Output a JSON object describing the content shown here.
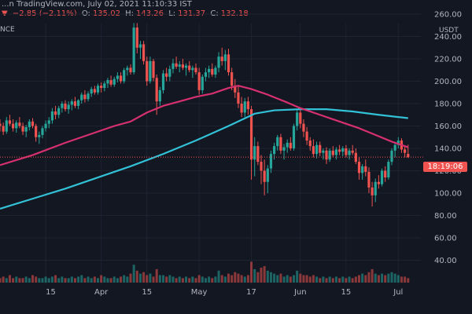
{
  "header": {
    "source": "...n TradingView.com, July 02, 2021 11:10:33 IST",
    "change_arrow": "▼",
    "change": "−2.85 (−2.11%)",
    "o_label": "O:",
    "o_value": "135.02",
    "h_label": "H:",
    "h_value": "143.26",
    "l_label": "L:",
    "l_value": "131.37",
    "c_label": "C:",
    "c_value": "132.18"
  },
  "symbol_fragment": "NCE",
  "price_tag": "18:19:06",
  "colors": {
    "background": "#131722",
    "up": "#26a69a",
    "down": "#ef5350",
    "ma_fast": "#d6306f",
    "ma_slow": "#32c1d6",
    "grid": "#1e2330"
  },
  "chart_data": {
    "type": "candlestick",
    "y_unit": "USDT",
    "y_ticks": [
      40,
      60,
      80,
      100,
      120,
      140,
      160,
      180,
      200,
      220,
      240,
      260
    ],
    "ylim": [
      20,
      260
    ],
    "x_ticks": [
      "15",
      "Apr",
      "15",
      "May",
      "17",
      "Jun",
      "15",
      "Jul"
    ],
    "x_tick_days": [
      14,
      31,
      45,
      61,
      77,
      92,
      106,
      122
    ],
    "last_price": 132.18,
    "candles": [
      {
        "d": 0,
        "o": 162,
        "h": 166,
        "l": 155,
        "c": 160
      },
      {
        "d": 1,
        "o": 160,
        "h": 163,
        "l": 152,
        "c": 155
      },
      {
        "d": 2,
        "o": 155,
        "h": 168,
        "l": 153,
        "c": 165
      },
      {
        "d": 3,
        "o": 165,
        "h": 170,
        "l": 160,
        "c": 162
      },
      {
        "d": 4,
        "o": 162,
        "h": 166,
        "l": 155,
        "c": 158
      },
      {
        "d": 5,
        "o": 158,
        "h": 165,
        "l": 154,
        "c": 163
      },
      {
        "d": 6,
        "o": 163,
        "h": 168,
        "l": 158,
        "c": 160
      },
      {
        "d": 7,
        "o": 160,
        "h": 163,
        "l": 152,
        "c": 155
      },
      {
        "d": 8,
        "o": 155,
        "h": 161,
        "l": 150,
        "c": 159
      },
      {
        "d": 9,
        "o": 159,
        "h": 166,
        "l": 156,
        "c": 164
      },
      {
        "d": 10,
        "o": 164,
        "h": 167,
        "l": 158,
        "c": 160
      },
      {
        "d": 11,
        "o": 160,
        "h": 162,
        "l": 146,
        "c": 150
      },
      {
        "d": 12,
        "o": 150,
        "h": 155,
        "l": 144,
        "c": 152
      },
      {
        "d": 13,
        "o": 152,
        "h": 160,
        "l": 149,
        "c": 158
      },
      {
        "d": 14,
        "o": 158,
        "h": 165,
        "l": 155,
        "c": 162
      },
      {
        "d": 15,
        "o": 162,
        "h": 168,
        "l": 158,
        "c": 165
      },
      {
        "d": 16,
        "o": 165,
        "h": 176,
        "l": 162,
        "c": 173
      },
      {
        "d": 17,
        "o": 173,
        "h": 178,
        "l": 166,
        "c": 170
      },
      {
        "d": 18,
        "o": 170,
        "h": 178,
        "l": 167,
        "c": 176
      },
      {
        "d": 19,
        "o": 176,
        "h": 182,
        "l": 172,
        "c": 180
      },
      {
        "d": 20,
        "o": 180,
        "h": 183,
        "l": 173,
        "c": 175
      },
      {
        "d": 21,
        "o": 175,
        "h": 182,
        "l": 171,
        "c": 179
      },
      {
        "d": 22,
        "o": 179,
        "h": 184,
        "l": 174,
        "c": 182
      },
      {
        "d": 23,
        "o": 182,
        "h": 186,
        "l": 176,
        "c": 178
      },
      {
        "d": 24,
        "o": 178,
        "h": 184,
        "l": 175,
        "c": 183
      },
      {
        "d": 25,
        "o": 183,
        "h": 190,
        "l": 180,
        "c": 188
      },
      {
        "d": 26,
        "o": 188,
        "h": 192,
        "l": 181,
        "c": 184
      },
      {
        "d": 27,
        "o": 184,
        "h": 191,
        "l": 182,
        "c": 189
      },
      {
        "d": 28,
        "o": 189,
        "h": 195,
        "l": 186,
        "c": 193
      },
      {
        "d": 29,
        "o": 193,
        "h": 196,
        "l": 188,
        "c": 190
      },
      {
        "d": 30,
        "o": 190,
        "h": 198,
        "l": 188,
        "c": 196
      },
      {
        "d": 31,
        "o": 196,
        "h": 199,
        "l": 190,
        "c": 194
      },
      {
        "d": 32,
        "o": 194,
        "h": 200,
        "l": 191,
        "c": 198
      },
      {
        "d": 33,
        "o": 198,
        "h": 203,
        "l": 194,
        "c": 201
      },
      {
        "d": 34,
        "o": 201,
        "h": 205,
        "l": 195,
        "c": 197
      },
      {
        "d": 35,
        "o": 197,
        "h": 204,
        "l": 195,
        "c": 202
      },
      {
        "d": 36,
        "o": 202,
        "h": 208,
        "l": 199,
        "c": 205
      },
      {
        "d": 37,
        "o": 205,
        "h": 208,
        "l": 198,
        "c": 200
      },
      {
        "d": 38,
        "o": 200,
        "h": 212,
        "l": 198,
        "c": 210
      },
      {
        "d": 39,
        "o": 210,
        "h": 214,
        "l": 205,
        "c": 212
      },
      {
        "d": 40,
        "o": 212,
        "h": 215,
        "l": 206,
        "c": 208
      },
      {
        "d": 41,
        "o": 208,
        "h": 252,
        "l": 206,
        "c": 248
      },
      {
        "d": 42,
        "o": 248,
        "h": 252,
        "l": 225,
        "c": 230
      },
      {
        "d": 43,
        "o": 230,
        "h": 236,
        "l": 220,
        "c": 233
      },
      {
        "d": 44,
        "o": 233,
        "h": 236,
        "l": 215,
        "c": 218
      },
      {
        "d": 45,
        "o": 218,
        "h": 222,
        "l": 196,
        "c": 200
      },
      {
        "d": 46,
        "o": 200,
        "h": 222,
        "l": 198,
        "c": 218
      },
      {
        "d": 47,
        "o": 218,
        "h": 220,
        "l": 200,
        "c": 203
      },
      {
        "d": 48,
        "o": 203,
        "h": 206,
        "l": 170,
        "c": 182
      },
      {
        "d": 49,
        "o": 182,
        "h": 195,
        "l": 178,
        "c": 192
      },
      {
        "d": 50,
        "o": 192,
        "h": 210,
        "l": 189,
        "c": 207
      },
      {
        "d": 51,
        "o": 207,
        "h": 212,
        "l": 200,
        "c": 204
      },
      {
        "d": 52,
        "o": 204,
        "h": 214,
        "l": 200,
        "c": 211
      },
      {
        "d": 53,
        "o": 211,
        "h": 220,
        "l": 207,
        "c": 216
      },
      {
        "d": 54,
        "o": 216,
        "h": 222,
        "l": 211,
        "c": 213
      },
      {
        "d": 55,
        "o": 213,
        "h": 218,
        "l": 208,
        "c": 215
      },
      {
        "d": 56,
        "o": 215,
        "h": 220,
        "l": 210,
        "c": 212
      },
      {
        "d": 57,
        "o": 212,
        "h": 216,
        "l": 205,
        "c": 214
      },
      {
        "d": 58,
        "o": 214,
        "h": 218,
        "l": 208,
        "c": 210
      },
      {
        "d": 59,
        "o": 210,
        "h": 214,
        "l": 203,
        "c": 212
      },
      {
        "d": 60,
        "o": 212,
        "h": 216,
        "l": 206,
        "c": 208
      },
      {
        "d": 61,
        "o": 208,
        "h": 212,
        "l": 188,
        "c": 192
      },
      {
        "d": 62,
        "o": 192,
        "h": 206,
        "l": 189,
        "c": 204
      },
      {
        "d": 63,
        "o": 204,
        "h": 212,
        "l": 200,
        "c": 208
      },
      {
        "d": 64,
        "o": 208,
        "h": 214,
        "l": 203,
        "c": 211
      },
      {
        "d": 65,
        "o": 211,
        "h": 216,
        "l": 204,
        "c": 206
      },
      {
        "d": 66,
        "o": 206,
        "h": 214,
        "l": 203,
        "c": 212
      },
      {
        "d": 67,
        "o": 212,
        "h": 226,
        "l": 208,
        "c": 222
      },
      {
        "d": 68,
        "o": 222,
        "h": 230,
        "l": 214,
        "c": 218
      },
      {
        "d": 69,
        "o": 218,
        "h": 228,
        "l": 210,
        "c": 224
      },
      {
        "d": 70,
        "o": 224,
        "h": 229,
        "l": 205,
        "c": 208
      },
      {
        "d": 71,
        "o": 208,
        "h": 212,
        "l": 192,
        "c": 196
      },
      {
        "d": 72,
        "o": 196,
        "h": 202,
        "l": 185,
        "c": 190
      },
      {
        "d": 73,
        "o": 190,
        "h": 196,
        "l": 176,
        "c": 180
      },
      {
        "d": 74,
        "o": 180,
        "h": 186,
        "l": 168,
        "c": 172
      },
      {
        "d": 75,
        "o": 172,
        "h": 185,
        "l": 168,
        "c": 182
      },
      {
        "d": 76,
        "o": 182,
        "h": 186,
        "l": 170,
        "c": 175
      },
      {
        "d": 77,
        "o": 175,
        "h": 178,
        "l": 112,
        "c": 130
      },
      {
        "d": 78,
        "o": 130,
        "h": 150,
        "l": 115,
        "c": 142
      },
      {
        "d": 79,
        "o": 142,
        "h": 146,
        "l": 125,
        "c": 128
      },
      {
        "d": 80,
        "o": 128,
        "h": 134,
        "l": 108,
        "c": 120
      },
      {
        "d": 81,
        "o": 120,
        "h": 130,
        "l": 98,
        "c": 110
      },
      {
        "d": 82,
        "o": 110,
        "h": 125,
        "l": 100,
        "c": 122
      },
      {
        "d": 83,
        "o": 122,
        "h": 138,
        "l": 118,
        "c": 135
      },
      {
        "d": 84,
        "o": 135,
        "h": 145,
        "l": 130,
        "c": 142
      },
      {
        "d": 85,
        "o": 142,
        "h": 152,
        "l": 138,
        "c": 150
      },
      {
        "d": 86,
        "o": 150,
        "h": 153,
        "l": 135,
        "c": 138
      },
      {
        "d": 87,
        "o": 138,
        "h": 144,
        "l": 130,
        "c": 141
      },
      {
        "d": 88,
        "o": 141,
        "h": 148,
        "l": 136,
        "c": 145
      },
      {
        "d": 89,
        "o": 145,
        "h": 150,
        "l": 138,
        "c": 140
      },
      {
        "d": 90,
        "o": 140,
        "h": 162,
        "l": 138,
        "c": 160
      },
      {
        "d": 91,
        "o": 160,
        "h": 174,
        "l": 156,
        "c": 172
      },
      {
        "d": 92,
        "o": 172,
        "h": 176,
        "l": 158,
        "c": 162
      },
      {
        "d": 93,
        "o": 162,
        "h": 166,
        "l": 150,
        "c": 155
      },
      {
        "d": 94,
        "o": 155,
        "h": 159,
        "l": 143,
        "c": 147
      },
      {
        "d": 95,
        "o": 147,
        "h": 150,
        "l": 138,
        "c": 142
      },
      {
        "d": 96,
        "o": 142,
        "h": 148,
        "l": 132,
        "c": 135
      },
      {
        "d": 97,
        "o": 135,
        "h": 146,
        "l": 131,
        "c": 143
      },
      {
        "d": 98,
        "o": 143,
        "h": 146,
        "l": 133,
        "c": 136
      },
      {
        "d": 99,
        "o": 136,
        "h": 140,
        "l": 130,
        "c": 138
      },
      {
        "d": 100,
        "o": 138,
        "h": 141,
        "l": 126,
        "c": 130
      },
      {
        "d": 101,
        "o": 130,
        "h": 140,
        "l": 128,
        "c": 138
      },
      {
        "d": 102,
        "o": 138,
        "h": 142,
        "l": 132,
        "c": 134
      },
      {
        "d": 103,
        "o": 134,
        "h": 141,
        "l": 130,
        "c": 139
      },
      {
        "d": 104,
        "o": 139,
        "h": 143,
        "l": 134,
        "c": 137
      },
      {
        "d": 105,
        "o": 137,
        "h": 142,
        "l": 133,
        "c": 140
      },
      {
        "d": 106,
        "o": 140,
        "h": 143,
        "l": 132,
        "c": 134
      },
      {
        "d": 107,
        "o": 134,
        "h": 140,
        "l": 130,
        "c": 138
      },
      {
        "d": 108,
        "o": 138,
        "h": 143,
        "l": 134,
        "c": 136
      },
      {
        "d": 109,
        "o": 136,
        "h": 140,
        "l": 126,
        "c": 128
      },
      {
        "d": 110,
        "o": 128,
        "h": 132,
        "l": 112,
        "c": 118
      },
      {
        "d": 111,
        "o": 118,
        "h": 126,
        "l": 112,
        "c": 124
      },
      {
        "d": 112,
        "o": 124,
        "h": 130,
        "l": 115,
        "c": 119
      },
      {
        "d": 113,
        "o": 119,
        "h": 123,
        "l": 100,
        "c": 105
      },
      {
        "d": 114,
        "o": 105,
        "h": 110,
        "l": 88,
        "c": 98
      },
      {
        "d": 115,
        "o": 98,
        "h": 113,
        "l": 92,
        "c": 110
      },
      {
        "d": 116,
        "o": 110,
        "h": 116,
        "l": 104,
        "c": 108
      },
      {
        "d": 117,
        "o": 108,
        "h": 122,
        "l": 106,
        "c": 120
      },
      {
        "d": 118,
        "o": 120,
        "h": 124,
        "l": 110,
        "c": 114
      },
      {
        "d": 119,
        "o": 114,
        "h": 130,
        "l": 112,
        "c": 128
      },
      {
        "d": 120,
        "o": 128,
        "h": 140,
        "l": 125,
        "c": 138
      },
      {
        "d": 121,
        "o": 138,
        "h": 146,
        "l": 132,
        "c": 143
      },
      {
        "d": 122,
        "o": 143,
        "h": 150,
        "l": 140,
        "c": 147
      },
      {
        "d": 123,
        "o": 147,
        "h": 149,
        "l": 136,
        "c": 139
      },
      {
        "d": 124,
        "o": 139,
        "h": 142,
        "l": 132,
        "c": 136
      },
      {
        "d": 125,
        "o": 135,
        "h": 143.3,
        "l": 131.4,
        "c": 132.2
      }
    ],
    "volume": [
      3,
      4,
      3,
      5,
      3,
      4,
      3,
      3,
      4,
      3,
      5,
      4,
      3,
      3,
      4,
      3,
      4,
      5,
      3,
      4,
      3,
      3,
      4,
      3,
      4,
      5,
      3,
      4,
      3,
      4,
      3,
      5,
      4,
      3,
      3,
      4,
      3,
      4,
      5,
      4,
      6,
      12,
      8,
      6,
      7,
      5,
      6,
      4,
      9,
      5,
      5,
      4,
      5,
      4,
      3,
      4,
      3,
      4,
      3,
      4,
      3,
      5,
      4,
      3,
      4,
      3,
      4,
      8,
      5,
      4,
      6,
      5,
      7,
      6,
      5,
      4,
      5,
      14,
      9,
      7,
      10,
      11,
      8,
      7,
      6,
      5,
      6,
      4,
      5,
      4,
      5,
      8,
      6,
      5,
      5,
      4,
      5,
      4,
      3,
      4,
      3,
      4,
      3,
      4,
      3,
      4,
      3,
      4,
      3,
      4,
      5,
      6,
      5,
      7,
      9,
      6,
      5,
      6,
      5,
      6,
      7,
      6,
      5,
      4,
      4,
      3
    ],
    "ma_fast": [
      {
        "d": 0,
        "v": 125
      },
      {
        "d": 10,
        "v": 134
      },
      {
        "d": 20,
        "v": 145
      },
      {
        "d": 30,
        "v": 155
      },
      {
        "d": 35,
        "v": 160
      },
      {
        "d": 40,
        "v": 164
      },
      {
        "d": 45,
        "v": 172
      },
      {
        "d": 50,
        "v": 178
      },
      {
        "d": 55,
        "v": 182
      },
      {
        "d": 60,
        "v": 186
      },
      {
        "d": 65,
        "v": 189
      },
      {
        "d": 70,
        "v": 194
      },
      {
        "d": 73,
        "v": 196
      },
      {
        "d": 77,
        "v": 193
      },
      {
        "d": 82,
        "v": 188
      },
      {
        "d": 88,
        "v": 181
      },
      {
        "d": 92,
        "v": 176
      },
      {
        "d": 98,
        "v": 170
      },
      {
        "d": 104,
        "v": 164
      },
      {
        "d": 110,
        "v": 158
      },
      {
        "d": 115,
        "v": 152
      },
      {
        "d": 120,
        "v": 146
      },
      {
        "d": 125,
        "v": 141
      }
    ],
    "ma_slow": [
      {
        "d": 0,
        "v": 86
      },
      {
        "d": 10,
        "v": 95
      },
      {
        "d": 20,
        "v": 104
      },
      {
        "d": 30,
        "v": 114
      },
      {
        "d": 40,
        "v": 124
      },
      {
        "d": 50,
        "v": 135
      },
      {
        "d": 60,
        "v": 147
      },
      {
        "d": 70,
        "v": 160
      },
      {
        "d": 78,
        "v": 171
      },
      {
        "d": 84,
        "v": 174
      },
      {
        "d": 92,
        "v": 175
      },
      {
        "d": 100,
        "v": 175
      },
      {
        "d": 108,
        "v": 173
      },
      {
        "d": 116,
        "v": 170
      },
      {
        "d": 122,
        "v": 168
      },
      {
        "d": 125,
        "v": 167
      }
    ]
  }
}
